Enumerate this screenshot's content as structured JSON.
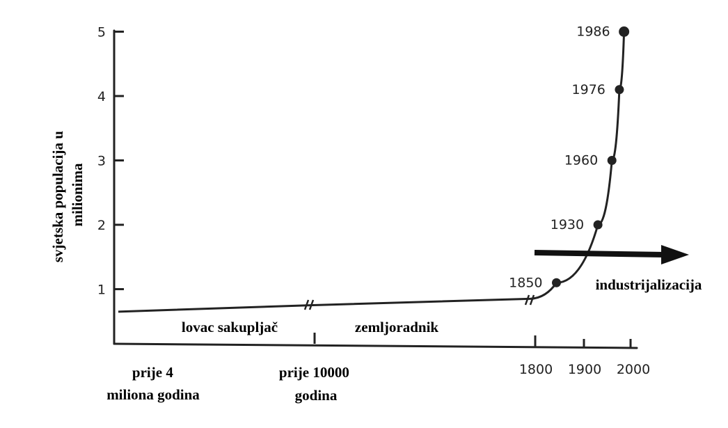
{
  "chart_data": {
    "type": "line",
    "ylabel_lines": [
      "svjetska populacija u",
      "milionima"
    ],
    "ylim": [
      0,
      5
    ],
    "y_ticks": [
      1,
      2,
      3,
      4,
      5
    ],
    "x_labels": {
      "start": [
        "prije 4",
        "miliona godina"
      ],
      "mid": [
        "prije 10000",
        "godina"
      ],
      "years": [
        "1800",
        "1900",
        "2000"
      ]
    },
    "eras": [
      "lovac sakupljač",
      "zemljoradnik",
      "industrijalizacija"
    ],
    "series": [
      {
        "points": [
          {
            "x": "prije 4 miliona godina",
            "y": 0.65
          },
          {
            "x": "prije 10000 godina",
            "y": 0.75
          },
          {
            "x": 1800,
            "y": 0.85
          },
          {
            "x": 1850,
            "y": 1.1,
            "label": "1850"
          },
          {
            "x": 1930,
            "y": 2.0,
            "label": "1930"
          },
          {
            "x": 1960,
            "y": 3.0,
            "label": "1960"
          },
          {
            "x": 1976,
            "y": 4.1,
            "label": "1976"
          },
          {
            "x": 1986,
            "y": 5.0,
            "label": "1986"
          }
        ]
      }
    ],
    "grid": false
  }
}
